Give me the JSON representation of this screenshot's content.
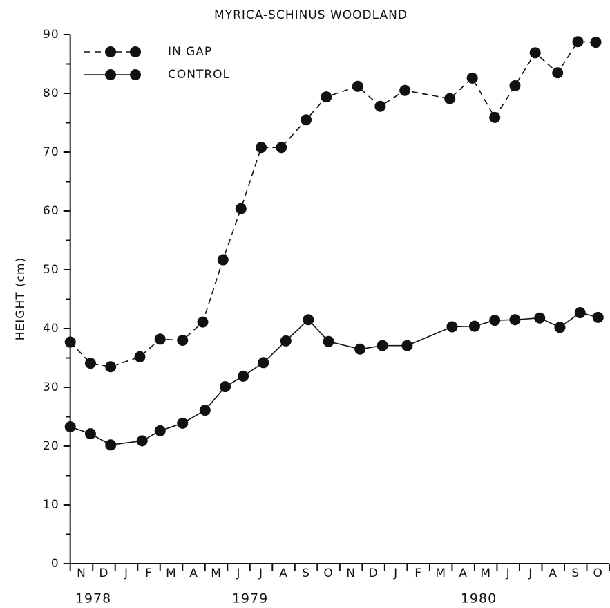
{
  "chart_data": {
    "type": "line",
    "title": "MYRICA-SCHINUS WOODLAND",
    "y_label": "HEIGHT (cm)",
    "categories": [
      "N",
      "D",
      "J",
      "F",
      "M",
      "A",
      "M",
      "J",
      "J",
      "A",
      "S",
      "O",
      "N",
      "D",
      "J",
      "F",
      "M",
      "A",
      "M",
      "J",
      "J",
      "A",
      "S",
      "O"
    ],
    "years": [
      "1978",
      "1979",
      "1980"
    ],
    "xlim": [
      0,
      24
    ],
    "ylim": [
      0,
      90
    ],
    "yticks": [
      0,
      10,
      20,
      30,
      40,
      50,
      60,
      70,
      80,
      90
    ],
    "series": [
      {
        "name": "IN GAP",
        "color": "#111111",
        "dashed": true,
        "x": [
          0.0,
          0.9,
          1.8,
          3.1,
          4.0,
          5.0,
          5.9,
          6.8,
          7.6,
          8.5,
          9.4,
          10.5,
          11.4,
          12.8,
          13.8,
          14.9,
          16.9,
          17.9,
          18.9,
          19.8,
          20.7,
          21.7,
          22.6,
          23.4
        ],
        "values": [
          37.7,
          34.1,
          33.5,
          35.2,
          38.2,
          38.0,
          41.1,
          51.7,
          60.4,
          70.8,
          70.8,
          75.5,
          79.4,
          81.2,
          77.8,
          80.5,
          79.1,
          82.6,
          75.9,
          81.3,
          86.9,
          83.5,
          88.8,
          88.7
        ]
      },
      {
        "name": "CONTROL",
        "color": "#111111",
        "dashed": false,
        "x": [
          0.0,
          0.9,
          1.8,
          3.2,
          4.0,
          5.0,
          6.0,
          6.9,
          7.7,
          8.6,
          9.6,
          10.6,
          11.5,
          12.9,
          13.9,
          15.0,
          17.0,
          18.0,
          18.9,
          19.8,
          20.9,
          21.8,
          22.7,
          23.5
        ],
        "values": [
          23.3,
          22.1,
          20.2,
          20.9,
          22.6,
          23.9,
          26.1,
          30.1,
          31.9,
          34.2,
          37.9,
          41.5,
          37.8,
          36.5,
          37.1,
          37.1,
          40.3,
          40.4,
          41.4,
          41.5,
          41.8,
          40.2,
          42.7,
          41.9
        ]
      }
    ]
  }
}
